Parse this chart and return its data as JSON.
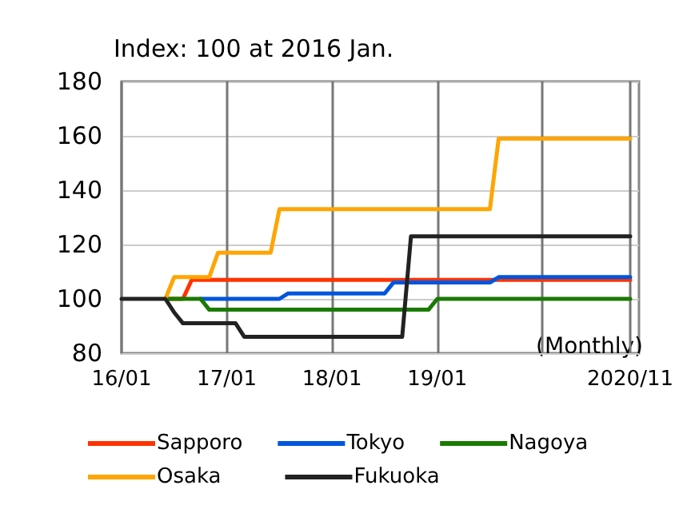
{
  "chart_data": {
    "type": "line",
    "title": "Index: 100 at 2016 Jan.",
    "annotations": [
      "(Monthly)"
    ],
    "x": [
      "2016-01",
      "2016-02",
      "2016-03",
      "2016-04",
      "2016-05",
      "2016-06",
      "2016-07",
      "2016-08",
      "2016-09",
      "2016-10",
      "2016-11",
      "2016-12",
      "2017-01",
      "2017-02",
      "2017-03",
      "2017-04",
      "2017-05",
      "2017-06",
      "2017-07",
      "2017-08",
      "2017-09",
      "2017-10",
      "2017-11",
      "2017-12",
      "2018-01",
      "2018-02",
      "2018-03",
      "2018-04",
      "2018-05",
      "2018-06",
      "2018-07",
      "2018-08",
      "2018-09",
      "2018-10",
      "2018-11",
      "2018-12",
      "2019-01",
      "2019-02",
      "2019-03",
      "2019-04",
      "2019-05",
      "2019-06",
      "2019-07",
      "2019-08",
      "2019-09",
      "2019-10",
      "2019-11",
      "2019-12",
      "2020-01",
      "2020-02",
      "2020-03",
      "2020-04",
      "2020-05",
      "2020-06",
      "2020-07",
      "2020-08",
      "2020-09",
      "2020-10",
      "2020-11"
    ],
    "series": [
      {
        "name": "Sapporo",
        "color": "#ff3300",
        "values": [
          null,
          null,
          null,
          null,
          null,
          100,
          100,
          100,
          107,
          107,
          107,
          107,
          107,
          107,
          107,
          107,
          107,
          107,
          107,
          107,
          107,
          107,
          107,
          107,
          107,
          107,
          107,
          107,
          107,
          107,
          107,
          107,
          107,
          107,
          107,
          107,
          107,
          107,
          107,
          107,
          107,
          107,
          107,
          107,
          107,
          107,
          107,
          107,
          107,
          107,
          107,
          107,
          107,
          107,
          107,
          107,
          107,
          107,
          107
        ]
      },
      {
        "name": "Tokyo",
        "color": "#0055dd",
        "values": [
          null,
          null,
          null,
          null,
          null,
          null,
          null,
          null,
          null,
          100,
          100,
          100,
          100,
          100,
          100,
          100,
          100,
          100,
          100,
          102,
          102,
          102,
          102,
          102,
          102,
          102,
          102,
          102,
          102,
          102,
          102,
          106,
          106,
          106,
          106,
          106,
          106,
          106,
          106,
          106,
          106,
          106,
          106,
          108,
          108,
          108,
          108,
          108,
          108,
          108,
          108,
          108,
          108,
          108,
          108,
          108,
          108,
          108,
          108
        ]
      },
      {
        "name": "Nagoya",
        "color": "#1a7a00",
        "values": [
          null,
          null,
          null,
          null,
          null,
          100,
          100,
          100,
          100,
          100,
          96,
          96,
          96,
          96,
          96,
          96,
          96,
          96,
          96,
          96,
          96,
          96,
          96,
          96,
          96,
          96,
          96,
          96,
          96,
          96,
          96,
          96,
          96,
          96,
          96,
          96,
          100,
          100,
          100,
          100,
          100,
          100,
          100,
          100,
          100,
          100,
          100,
          100,
          100,
          100,
          100,
          100,
          100,
          100,
          100,
          100,
          100,
          100,
          100
        ]
      },
      {
        "name": "Osaka",
        "color": "#ffa500",
        "values": [
          null,
          null,
          null,
          null,
          null,
          100,
          108,
          108,
          108,
          108,
          108,
          117,
          117,
          117,
          117,
          117,
          117,
          117,
          133,
          133,
          133,
          133,
          133,
          133,
          133,
          133,
          133,
          133,
          133,
          133,
          133,
          133,
          133,
          133,
          133,
          133,
          133,
          133,
          133,
          133,
          133,
          133,
          133,
          159,
          159,
          159,
          159,
          159,
          159,
          159,
          159,
          159,
          159,
          159,
          159,
          159,
          159,
          159,
          159
        ]
      },
      {
        "name": "Fukuoka",
        "color": "#222222",
        "values": [
          100,
          100,
          100,
          100,
          100,
          100,
          95,
          91,
          91,
          91,
          91,
          91,
          91,
          91,
          86,
          86,
          86,
          86,
          86,
          86,
          86,
          86,
          86,
          86,
          86,
          86,
          86,
          86,
          86,
          86,
          86,
          86,
          86,
          123,
          123,
          123,
          123,
          123,
          123,
          123,
          123,
          123,
          123,
          123,
          123,
          123,
          123,
          123,
          123,
          123,
          123,
          123,
          123,
          123,
          123,
          123,
          123,
          123,
          123
        ]
      }
    ],
    "xlim": [
      "2016-01",
      "2020-12"
    ],
    "xticks": [
      {
        "value": "2016-01",
        "label": "16/01"
      },
      {
        "value": "2017-01",
        "label": "17/01"
      },
      {
        "value": "2018-01",
        "label": "18/01"
      },
      {
        "value": "2019-01",
        "label": "19/01"
      },
      {
        "value": "2020-01",
        "label": null
      },
      {
        "value": "2020-11",
        "label": "2020/11"
      }
    ],
    "ylim": [
      80,
      180
    ],
    "yticks": [
      80,
      100,
      120,
      140,
      160,
      180
    ],
    "grid": true,
    "legend": "bottom",
    "marker": "none",
    "line_style": "solid"
  }
}
